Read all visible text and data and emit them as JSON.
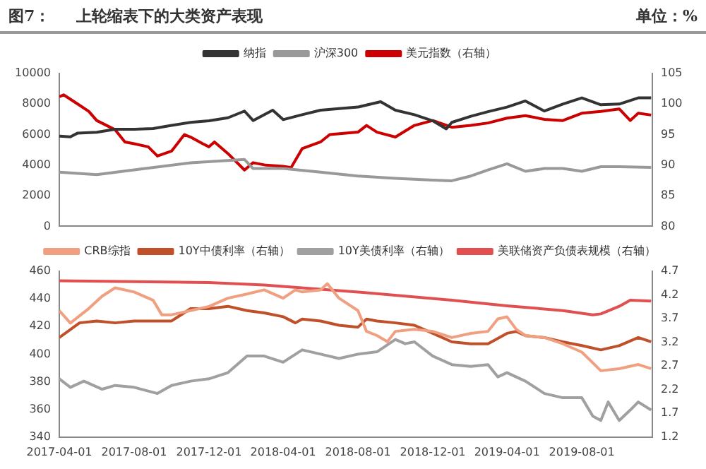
{
  "chart_data": [
    {
      "type": "line",
      "title": "上轮缩表下的大类资产表现",
      "annotations": [
        "图7：",
        "单位：%"
      ],
      "legend": "top",
      "grid": false,
      "marker": "none",
      "line_style": "solid",
      "tick_labels": "y",
      "xlim": [
        "2017-04-01",
        "2019-11-24"
      ],
      "xticks": [
        "2017-04-01",
        "2017-08-01",
        "2017-12-01",
        "2018-04-01",
        "2018-08-01",
        "2018-12-01",
        "2019-04-01",
        "2019-08-01"
      ],
      "ylim": [
        0,
        10000
      ],
      "yticks": [
        0,
        2000,
        4000,
        6000,
        8000,
        10000
      ],
      "y2lim": [
        80,
        105
      ],
      "y2ticks": [
        80,
        85,
        90,
        95,
        100,
        105
      ],
      "series": [
        {
          "name": "纳指",
          "color": "#333333",
          "x": [
            "2017-04-01",
            "2017-04-19",
            "2017-05-01",
            "2017-06-01",
            "2017-07-01",
            "2017-08-01",
            "2017-09-01",
            "2017-10-01",
            "2017-11-01",
            "2017-12-01",
            "2018-01-01",
            "2018-01-28",
            "2018-02-11",
            "2018-03-15",
            "2018-04-01",
            "2018-05-02",
            "2018-06-01",
            "2018-07-01",
            "2018-08-01",
            "2018-09-07",
            "2018-10-01",
            "2018-11-01",
            "2018-12-01",
            "2018-12-23",
            "2019-01-01",
            "2019-02-01",
            "2019-03-01",
            "2019-04-01",
            "2019-05-01",
            "2019-06-01",
            "2019-07-01",
            "2019-08-01",
            "2019-09-01",
            "2019-10-01",
            "2019-11-01",
            "2019-11-22"
          ],
          "values": [
            5900,
            5850,
            6100,
            6150,
            6350,
            6350,
            6400,
            6600,
            6800,
            6900,
            7100,
            7540,
            6920,
            7600,
            6980,
            7300,
            7600,
            7700,
            7800,
            8150,
            7600,
            7300,
            6900,
            6370,
            6800,
            7200,
            7500,
            7800,
            8200,
            7540,
            8000,
            8400,
            7950,
            8000,
            8400,
            8400
          ]
        },
        {
          "name": "沪深300",
          "color": "#999999",
          "x": [
            "2017-04-01",
            "2017-06-01",
            "2017-08-01",
            "2017-11-01",
            "2018-01-28",
            "2018-02-11",
            "2018-04-01",
            "2018-06-01",
            "2018-08-01",
            "2018-10-01",
            "2018-12-01",
            "2019-01-01",
            "2019-02-01",
            "2019-03-01",
            "2019-04-01",
            "2019-05-01",
            "2019-06-01",
            "2019-07-01",
            "2019-08-01",
            "2019-09-01",
            "2019-10-01",
            "2019-11-22"
          ],
          "values": [
            3540,
            3380,
            3690,
            4150,
            4370,
            3780,
            3780,
            3540,
            3290,
            3140,
            3020,
            2980,
            3290,
            3690,
            4090,
            3600,
            3780,
            3780,
            3600,
            3900,
            3900,
            3850
          ]
        },
        {
          "name": "美元指数（右轴）",
          "color": "#cc0000",
          "axis": "y2",
          "x": [
            "2017-04-01",
            "2017-04-08",
            "2017-05-01",
            "2017-05-19",
            "2017-06-01",
            "2017-07-01",
            "2017-07-17",
            "2017-08-01",
            "2017-08-24",
            "2017-09-08",
            "2017-10-01",
            "2017-10-22",
            "2017-11-01",
            "2017-11-21",
            "2017-12-01",
            "2017-12-10",
            "2018-01-01",
            "2018-01-28",
            "2018-02-11",
            "2018-03-04",
            "2018-04-01",
            "2018-04-14",
            "2018-05-02",
            "2018-06-01",
            "2018-06-16",
            "2018-08-01",
            "2018-08-15",
            "2018-09-01",
            "2018-10-01",
            "2018-11-01",
            "2018-12-01",
            "2019-01-01",
            "2019-02-01",
            "2019-03-01",
            "2019-04-01",
            "2019-05-01",
            "2019-06-01",
            "2019-07-01",
            "2019-08-01",
            "2019-09-01",
            "2019-10-01",
            "2019-10-19",
            "2019-11-01",
            "2019-11-22"
          ],
          "values": [
            101.2,
            101.5,
            100,
            98.8,
            97.3,
            95.8,
            93.8,
            93.5,
            93,
            91.5,
            92.3,
            95,
            94.6,
            93.5,
            93,
            93.8,
            91.9,
            89.2,
            90.4,
            90,
            89.8,
            89.6,
            92.7,
            93.8,
            95,
            95.4,
            96.5,
            95.4,
            94.6,
            96.5,
            97.3,
            96.2,
            96.5,
            96.9,
            97.7,
            98.1,
            97.5,
            97.3,
            98.5,
            98.8,
            99.2,
            97.3,
            98.5,
            98.2
          ]
        }
      ]
    },
    {
      "type": "line",
      "legend": "top",
      "grid": false,
      "marker": "none",
      "line_style": "solid",
      "xlim": [
        "2017-04-01",
        "2019-11-24"
      ],
      "xticks": [
        "2017-04-01",
        "2017-08-01",
        "2017-12-01",
        "2018-04-01",
        "2018-08-01",
        "2018-12-01",
        "2019-04-01",
        "2019-08-01"
      ],
      "ylim": [
        340,
        460
      ],
      "yticks": [
        340,
        360,
        380,
        400,
        420,
        440,
        460
      ],
      "y2lim": [
        1.2,
        4.7
      ],
      "y2ticks": [
        1.2,
        1.7,
        2.2,
        2.7,
        3.2,
        3.7,
        4.2,
        4.7
      ],
      "series": [
        {
          "name": "CRB综指",
          "color": "#f0a080",
          "x": [
            "2017-04-01",
            "2017-04-19",
            "2017-05-19",
            "2017-06-10",
            "2017-07-01",
            "2017-08-01",
            "2017-09-01",
            "2017-09-15",
            "2017-10-01",
            "2017-11-01",
            "2017-12-01",
            "2018-01-01",
            "2018-02-01",
            "2018-03-01",
            "2018-04-01",
            "2018-04-21",
            "2018-05-02",
            "2018-06-01",
            "2018-06-12",
            "2018-07-01",
            "2018-08-01",
            "2018-08-15",
            "2018-09-01",
            "2018-09-18",
            "2018-10-01",
            "2018-11-01",
            "2018-12-01",
            "2019-01-01",
            "2019-02-01",
            "2019-03-01",
            "2019-03-17",
            "2019-04-01",
            "2019-04-16",
            "2019-05-01",
            "2019-06-01",
            "2019-07-01",
            "2019-08-01",
            "2019-09-01",
            "2019-10-01",
            "2019-11-01",
            "2019-11-22"
          ],
          "values": [
            431.5,
            422.5,
            433,
            442,
            448,
            445,
            439,
            428.5,
            428.5,
            431.5,
            434.5,
            440.5,
            443.5,
            446.5,
            440.5,
            446.5,
            445,
            446.5,
            451,
            440.5,
            431.5,
            416.5,
            413.5,
            409,
            416.5,
            418,
            416.5,
            412,
            415,
            416.5,
            425.5,
            427,
            418,
            413.5,
            412,
            407.5,
            401.5,
            388,
            389.5,
            392.5,
            389.5
          ]
        },
        {
          "name": "10Y中债利率（右轴）",
          "color": "#c0502a",
          "axis": "y2",
          "x": [
            "2017-04-01",
            "2017-05-04",
            "2017-06-01",
            "2017-07-01",
            "2017-08-01",
            "2017-09-01",
            "2017-10-01",
            "2017-11-01",
            "2017-12-01",
            "2018-01-01",
            "2018-02-01",
            "2018-03-01",
            "2018-04-01",
            "2018-04-21",
            "2018-05-02",
            "2018-06-01",
            "2018-07-01",
            "2018-08-01",
            "2018-08-15",
            "2018-09-01",
            "2018-10-01",
            "2018-11-01",
            "2018-12-01",
            "2019-01-01",
            "2019-02-01",
            "2019-03-01",
            "2019-04-01",
            "2019-04-16",
            "2019-05-01",
            "2019-06-01",
            "2019-07-01",
            "2019-08-01",
            "2019-09-01",
            "2019-10-01",
            "2019-11-01",
            "2019-11-22"
          ],
          "values": [
            3.3,
            3.61,
            3.65,
            3.61,
            3.65,
            3.65,
            3.65,
            3.91,
            3.91,
            3.96,
            3.87,
            3.82,
            3.74,
            3.61,
            3.69,
            3.65,
            3.56,
            3.52,
            3.69,
            3.65,
            3.61,
            3.56,
            3.39,
            3.21,
            3.17,
            3.17,
            3.39,
            3.43,
            3.34,
            3.3,
            3.21,
            3.13,
            3.04,
            3.13,
            3.3,
            3.21
          ]
        },
        {
          "name": "10Y美债利率（右轴）",
          "color": "#a0a0a0",
          "axis": "y2",
          "x": [
            "2017-04-01",
            "2017-04-19",
            "2017-05-11",
            "2017-06-10",
            "2017-07-01",
            "2017-08-01",
            "2017-09-08",
            "2017-10-01",
            "2017-11-01",
            "2017-12-01",
            "2018-01-01",
            "2018-02-01",
            "2018-03-01",
            "2018-04-01",
            "2018-05-02",
            "2018-06-01",
            "2018-07-01",
            "2018-08-01",
            "2018-09-01",
            "2018-10-01",
            "2018-10-17",
            "2018-11-01",
            "2018-12-01",
            "2019-01-01",
            "2019-02-01",
            "2019-03-01",
            "2019-03-17",
            "2019-04-01",
            "2019-05-01",
            "2019-06-01",
            "2019-07-01",
            "2019-08-01",
            "2019-08-19",
            "2019-09-01",
            "2019-09-13",
            "2019-10-01",
            "2019-10-19",
            "2019-11-01",
            "2019-11-22"
          ],
          "values": [
            2.43,
            2.25,
            2.38,
            2.21,
            2.29,
            2.25,
            2.12,
            2.29,
            2.38,
            2.43,
            2.56,
            2.91,
            2.91,
            2.78,
            3.04,
            2.95,
            2.86,
            2.95,
            3.0,
            3.26,
            3.17,
            3.21,
            2.91,
            2.73,
            2.69,
            2.73,
            2.47,
            2.56,
            2.38,
            2.12,
            2.03,
            2.03,
            1.64,
            1.55,
            1.94,
            1.55,
            1.77,
            1.94,
            1.77
          ]
        },
        {
          "name": "美联储资产负债表规模（右轴）",
          "color": "#e05050",
          "axis": "y2",
          "x": [
            "2017-04-01",
            "2017-12-01",
            "2018-03-01",
            "2018-08-01",
            "2019-01-01",
            "2019-04-01",
            "2019-07-01",
            "2019-08-19",
            "2019-09-01",
            "2019-10-01",
            "2019-10-19",
            "2019-11-22"
          ],
          "values": [
            4.5,
            4.46,
            4.41,
            4.26,
            4.09,
            3.97,
            3.87,
            3.78,
            3.8,
            3.96,
            4.09,
            4.07
          ]
        }
      ]
    }
  ]
}
